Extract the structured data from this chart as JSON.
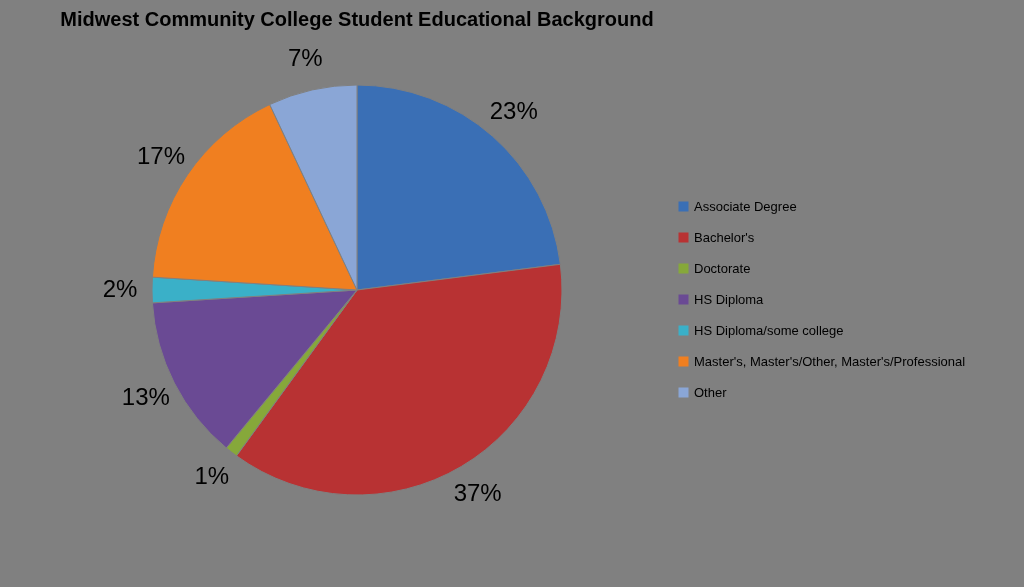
{
  "chart_data": {
    "type": "pie",
    "title": "Midwest Community College Student Educational Background",
    "categories": [
      "Associate Degree",
      "Bachelor's",
      "Doctorate",
      "HS Diploma",
      "HS Diploma/some college",
      "Master's, Master's/Other, Master's/Professional",
      "Other"
    ],
    "values": [
      23,
      37,
      1,
      13,
      2,
      17,
      7
    ],
    "value_labels": [
      "23%",
      "37%",
      "1%",
      "13%",
      "2%",
      "17%",
      "7%"
    ],
    "colors": [
      "#3a6fb5",
      "#b83233",
      "#86a83a",
      "#6a4a94",
      "#3ab0c8",
      "#f07f20",
      "#8aa6d6"
    ],
    "legend": "right"
  }
}
